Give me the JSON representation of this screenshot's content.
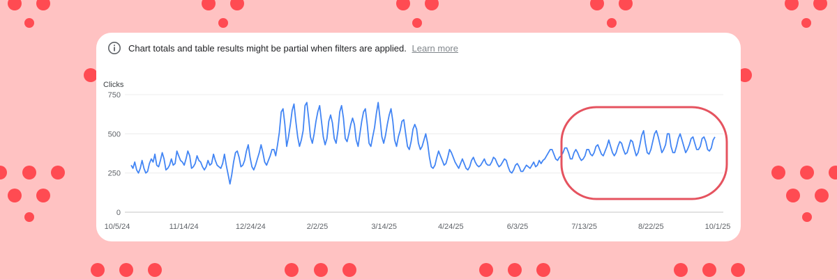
{
  "notice": {
    "text": "Chart totals and table results might be partial when filters are applied.",
    "link_label": "Learn more",
    "icon": "info-icon"
  },
  "colors": {
    "background": "#ffc2c2",
    "dots": "#ff4b52",
    "line": "#4285f4",
    "highlight": "#e5535f"
  },
  "chart_data": {
    "type": "line",
    "ylabel": "Clicks",
    "ylim": [
      0,
      750
    ],
    "yticks": [
      0,
      250,
      500,
      750
    ],
    "grid": true,
    "x_tick_labels": [
      "10/5/24",
      "11/14/24",
      "12/24/24",
      "2/2/25",
      "3/14/25",
      "4/24/25",
      "6/3/25",
      "7/13/25",
      "8/22/25",
      "10/1/25"
    ],
    "series": [
      {
        "name": "Clicks",
        "values": [
          300,
          280,
          320,
          270,
          250,
          280,
          330,
          280,
          250,
          260,
          310,
          340,
          320,
          370,
          300,
          290,
          330,
          380,
          340,
          270,
          280,
          300,
          340,
          300,
          310,
          390,
          360,
          330,
          320,
          300,
          340,
          390,
          360,
          280,
          290,
          310,
          360,
          330,
          320,
          290,
          270,
          290,
          330,
          300,
          310,
          370,
          330,
          300,
          290,
          280,
          310,
          370,
          300,
          240,
          180,
          240,
          320,
          380,
          390,
          350,
          290,
          300,
          330,
          390,
          430,
          350,
          290,
          270,
          300,
          340,
          380,
          430,
          380,
          320,
          300,
          330,
          360,
          400,
          400,
          360,
          430,
          510,
          640,
          660,
          560,
          420,
          480,
          560,
          650,
          690,
          580,
          480,
          420,
          460,
          520,
          680,
          700,
          600,
          480,
          440,
          500,
          580,
          640,
          680,
          580,
          480,
          430,
          470,
          580,
          620,
          570,
          470,
          440,
          520,
          640,
          680,
          600,
          470,
          450,
          500,
          560,
          600,
          560,
          460,
          420,
          500,
          580,
          640,
          660,
          560,
          440,
          420,
          480,
          540,
          630,
          700,
          600,
          480,
          440,
          490,
          560,
          620,
          660,
          580,
          460,
          420,
          480,
          520,
          580,
          590,
          500,
          420,
          400,
          450,
          530,
          560,
          530,
          440,
          400,
          420,
          460,
          500,
          440,
          350,
          290,
          280,
          300,
          350,
          390,
          360,
          330,
          300,
          310,
          350,
          400,
          380,
          350,
          320,
          300,
          280,
          310,
          340,
          310,
          280,
          270,
          290,
          330,
          350,
          320,
          300,
          290,
          300,
          320,
          340,
          310,
          300,
          300,
          320,
          350,
          340,
          310,
          290,
          300,
          320,
          340,
          330,
          290,
          260,
          250,
          270,
          300,
          310,
          290,
          260,
          260,
          280,
          300,
          290,
          280,
          300,
          320,
          290,
          300,
          330,
          310,
          330,
          340,
          360,
          380,
          400,
          400,
          370,
          340,
          330,
          350,
          360,
          380,
          410,
          410,
          380,
          340,
          340,
          380,
          400,
          380,
          350,
          330,
          340,
          360,
          400,
          400,
          370,
          360,
          380,
          420,
          430,
          400,
          370,
          360,
          390,
          420,
          460,
          420,
          380,
          360,
          380,
          420,
          450,
          440,
          400,
          370,
          380,
          420,
          460,
          450,
          400,
          360,
          380,
          430,
          490,
          520,
          440,
          380,
          370,
          400,
          450,
          500,
          520,
          480,
          430,
          380,
          400,
          430,
          500,
          500,
          420,
          380,
          380,
          420,
          470,
          500,
          460,
          420,
          380,
          400,
          430,
          470,
          480,
          440,
          400,
          400,
          420,
          470,
          480,
          450,
          400,
          390,
          410,
          460,
          480
        ]
      }
    ],
    "annotations": [
      "highlight-ellipse-recent-period"
    ]
  }
}
